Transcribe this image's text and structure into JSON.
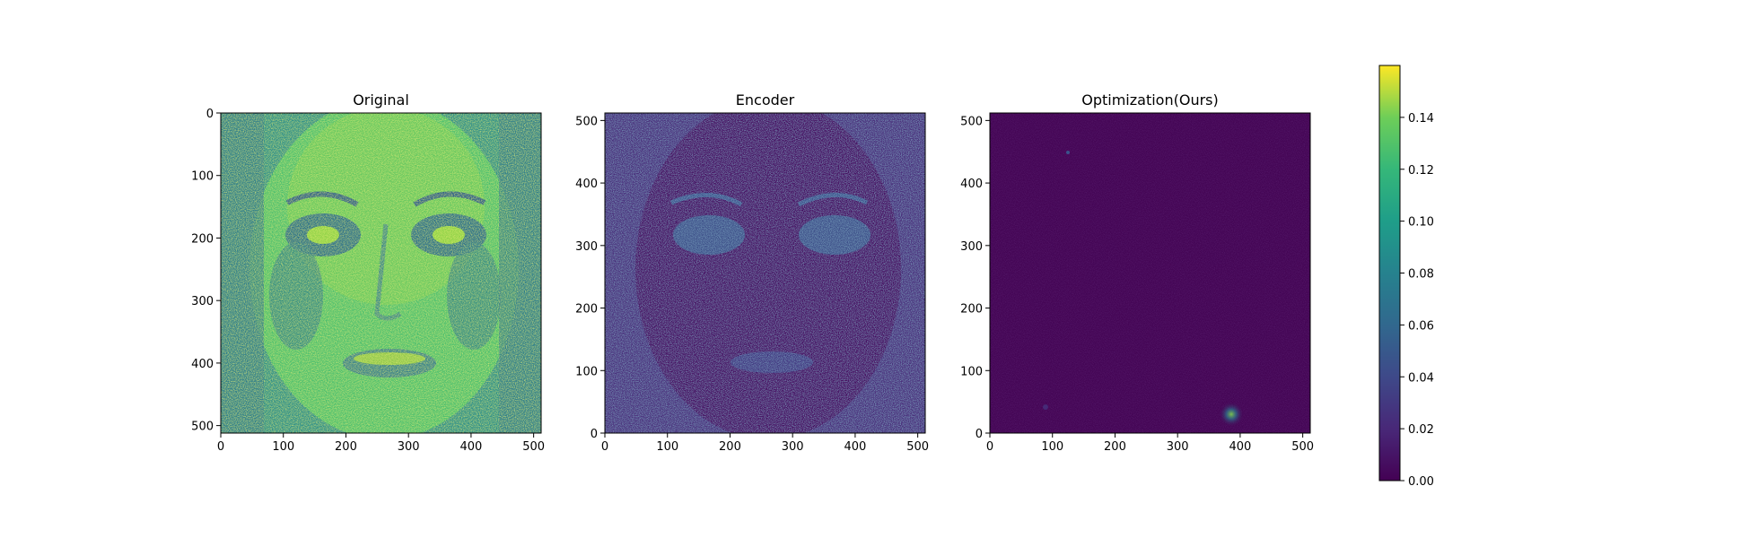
{
  "chart_data": [
    {
      "type": "heatmap",
      "title": "Original",
      "xlabel": "",
      "ylabel": "",
      "xlim": [
        0,
        512
      ],
      "ylim": [
        512,
        0
      ],
      "y_inverted": true,
      "x_ticks": [
        0,
        100,
        200,
        300,
        400,
        500
      ],
      "y_ticks": [
        0,
        100,
        200,
        300,
        400,
        500
      ],
      "grid": false,
      "content": "face image rendered in viridis colormap, values mostly 0.06-0.14"
    },
    {
      "type": "heatmap",
      "title": "Encoder",
      "xlabel": "",
      "ylabel": "",
      "xlim": [
        0,
        512
      ],
      "ylim": [
        0,
        512
      ],
      "y_inverted": false,
      "x_ticks": [
        0,
        100,
        200,
        300,
        400,
        500
      ],
      "y_ticks": [
        0,
        100,
        200,
        300,
        400,
        500
      ],
      "grid": false,
      "content": "noisy error map, face outline visible, values mostly 0.00-0.06"
    },
    {
      "type": "heatmap",
      "title": "Optimization(Ours)",
      "xlabel": "",
      "ylabel": "",
      "xlim": [
        0,
        512
      ],
      "ylim": [
        0,
        512
      ],
      "y_inverted": false,
      "x_ticks": [
        0,
        100,
        200,
        300,
        400,
        500
      ],
      "y_ticks": [
        0,
        100,
        200,
        300,
        400,
        500
      ],
      "grid": false,
      "content": "near-zero error map with a small bright spot near x=390, y=30"
    }
  ],
  "colorbar": {
    "colormap": "viridis",
    "range": [
      0.0,
      0.16
    ],
    "ticks": [
      "0.00",
      "0.02",
      "0.04",
      "0.06",
      "0.08",
      "0.10",
      "0.12",
      "0.14"
    ]
  },
  "colors": {
    "viridis_low": "#440154",
    "viridis_mid": "#21918c",
    "viridis_high": "#fde725",
    "encoder_base": "#46136e",
    "ours_base": "#440555",
    "original_base": "#3cb580"
  }
}
